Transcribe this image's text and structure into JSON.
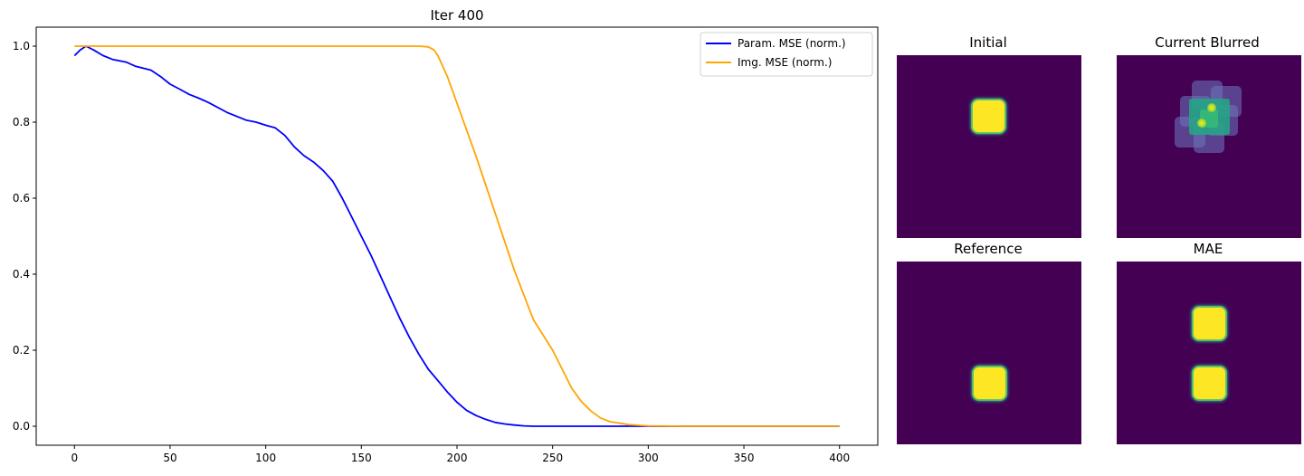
{
  "chart_data": {
    "type": "line",
    "title": "Iter 400",
    "xlabel": "",
    "ylabel": "",
    "xlim": [
      -20,
      420
    ],
    "ylim": [
      -0.05,
      1.05
    ],
    "xticks": [
      0,
      50,
      100,
      150,
      200,
      250,
      300,
      350,
      400
    ],
    "yticks": [
      0.0,
      0.2,
      0.4,
      0.6,
      0.8,
      1.0
    ],
    "grid": false,
    "legend_position": "top-right",
    "series": [
      {
        "name": "Param. MSE (norm.)",
        "color": "#0000ff",
        "x": [
          0,
          3,
          6,
          10,
          15,
          20,
          27,
          32,
          40,
          45,
          50,
          55,
          60,
          65,
          70,
          80,
          90,
          95,
          100,
          105,
          110,
          115,
          120,
          125,
          130,
          135,
          140,
          145,
          150,
          155,
          160,
          165,
          170,
          175,
          180,
          185,
          190,
          195,
          200,
          205,
          210,
          215,
          220,
          225,
          230,
          235,
          240,
          245,
          250,
          260,
          270,
          280,
          290,
          300,
          320,
          350,
          400
        ],
        "y": [
          0.975,
          0.99,
          1.0,
          0.99,
          0.975,
          0.965,
          0.958,
          0.947,
          0.937,
          0.92,
          0.9,
          0.887,
          0.873,
          0.863,
          0.852,
          0.825,
          0.805,
          0.8,
          0.792,
          0.785,
          0.765,
          0.735,
          0.712,
          0.695,
          0.673,
          0.645,
          0.6,
          0.55,
          0.5,
          0.45,
          0.395,
          0.34,
          0.285,
          0.235,
          0.19,
          0.15,
          0.12,
          0.09,
          0.063,
          0.042,
          0.028,
          0.018,
          0.01,
          0.006,
          0.003,
          0.001,
          0.0,
          0.0,
          0.0,
          0.0,
          0.0,
          0.0,
          0.0,
          0.0,
          0.0,
          0.0,
          0.0
        ]
      },
      {
        "name": "Img. MSE (norm.)",
        "color": "#ffa500",
        "x": [
          0,
          50,
          100,
          150,
          180,
          185,
          188,
          190,
          195,
          200,
          210,
          220,
          230,
          240,
          250,
          255,
          260,
          265,
          270,
          275,
          280,
          290,
          300,
          320,
          350,
          400
        ],
        "y": [
          1.0,
          1.0,
          1.0,
          1.0,
          1.0,
          0.998,
          0.99,
          0.975,
          0.92,
          0.85,
          0.71,
          0.56,
          0.41,
          0.28,
          0.2,
          0.15,
          0.1,
          0.065,
          0.04,
          0.022,
          0.012,
          0.004,
          0.001,
          0.0,
          0.0,
          0.0
        ]
      }
    ]
  },
  "panels": [
    {
      "title": "Initial"
    },
    {
      "title": "Current Blurred"
    },
    {
      "title": "Reference"
    },
    {
      "title": "MAE"
    }
  ],
  "colors": {
    "viridis_low": "#440154",
    "viridis_high": "#fde725"
  }
}
